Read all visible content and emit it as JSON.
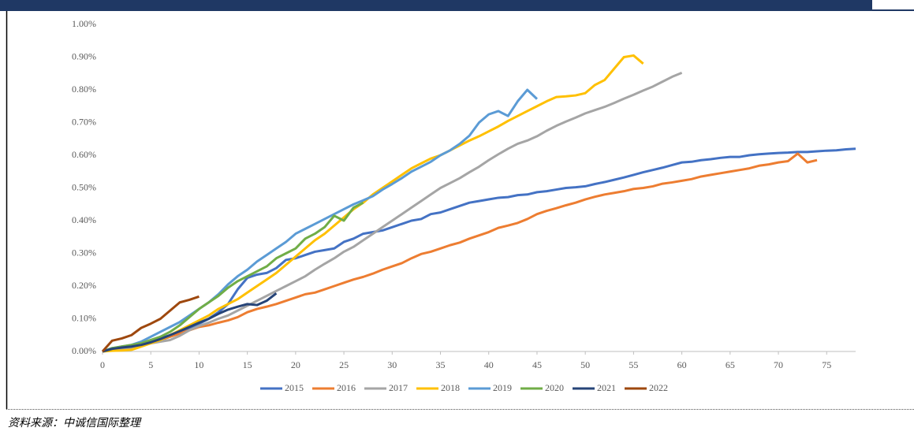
{
  "chart_data": {
    "type": "line",
    "x": [
      0,
      1,
      2,
      3,
      4,
      5,
      6,
      7,
      8,
      9,
      10,
      11,
      12,
      13,
      14,
      15,
      16,
      17,
      18,
      19,
      20,
      21,
      22,
      23,
      24,
      25,
      26,
      27,
      28,
      29,
      30,
      31,
      32,
      33,
      34,
      35,
      36,
      37,
      38,
      39,
      40,
      41,
      42,
      43,
      44,
      45,
      46,
      47,
      48,
      49,
      50,
      51,
      52,
      53,
      54,
      55,
      56,
      57,
      58,
      59,
      60,
      61,
      62,
      63,
      64,
      65,
      66,
      67,
      68,
      69,
      70,
      71,
      72,
      73,
      74,
      75,
      76,
      77,
      78
    ],
    "xlim": [
      0,
      78
    ],
    "xticks": [
      0,
      5,
      10,
      15,
      20,
      25,
      30,
      35,
      40,
      45,
      50,
      55,
      60,
      65,
      70,
      75
    ],
    "ylim": [
      0,
      1
    ],
    "yticks": [
      {
        "value": 0,
        "label": "0.00%"
      },
      {
        "value": 0.1,
        "label": "0.10%"
      },
      {
        "value": 0.2,
        "label": "0.20%"
      },
      {
        "value": 0.3,
        "label": "0.30%"
      },
      {
        "value": 0.4,
        "label": "0.40%"
      },
      {
        "value": 0.5,
        "label": "0.50%"
      },
      {
        "value": 0.6,
        "label": "0.60%"
      },
      {
        "value": 0.7,
        "label": "0.70%"
      },
      {
        "value": 0.8,
        "label": "0.80%"
      },
      {
        "value": 0.9,
        "label": "0.90%"
      },
      {
        "value": 1,
        "label": "1.00%"
      }
    ],
    "grid": false,
    "legend": "bottom",
    "series": [
      {
        "name": "2015",
        "color": "#4472c4",
        "values": [
          0,
          0.01,
          0.013,
          0.015,
          0.02,
          0.03,
          0.04,
          0.05,
          0.06,
          0.07,
          0.085,
          0.1,
          0.12,
          0.145,
          0.19,
          0.225,
          0.235,
          0.24,
          0.255,
          0.28,
          0.285,
          0.295,
          0.305,
          0.31,
          0.315,
          0.335,
          0.345,
          0.36,
          0.365,
          0.37,
          0.38,
          0.39,
          0.4,
          0.405,
          0.42,
          0.425,
          0.435,
          0.445,
          0.455,
          0.46,
          0.465,
          0.47,
          0.472,
          0.478,
          0.48,
          0.487,
          0.49,
          0.495,
          0.5,
          0.502,
          0.505,
          0.512,
          0.518,
          0.525,
          0.532,
          0.54,
          0.548,
          0.555,
          0.562,
          0.57,
          0.578,
          0.58,
          0.585,
          0.588,
          0.592,
          0.595,
          0.595,
          0.6,
          0.603,
          0.605,
          0.607,
          0.608,
          0.61,
          0.61,
          0.612,
          0.614,
          0.615,
          0.618,
          0.62
        ]
      },
      {
        "name": "2016",
        "color": "#ed7d31",
        "values": [
          0,
          0.005,
          0.01,
          0.015,
          0.02,
          0.025,
          0.035,
          0.045,
          0.055,
          0.065,
          0.075,
          0.08,
          0.088,
          0.095,
          0.105,
          0.12,
          0.13,
          0.137,
          0.145,
          0.155,
          0.165,
          0.175,
          0.18,
          0.19,
          0.2,
          0.21,
          0.22,
          0.228,
          0.238,
          0.25,
          0.26,
          0.27,
          0.285,
          0.298,
          0.305,
          0.315,
          0.325,
          0.333,
          0.345,
          0.355,
          0.365,
          0.378,
          0.385,
          0.393,
          0.405,
          0.42,
          0.43,
          0.438,
          0.447,
          0.455,
          0.465,
          0.473,
          0.48,
          0.485,
          0.49,
          0.497,
          0.5,
          0.505,
          0.513,
          0.517,
          0.522,
          0.527,
          0.535,
          0.54,
          0.545,
          0.55,
          0.555,
          0.56,
          0.568,
          0.572,
          0.578,
          0.582,
          0.605,
          0.578,
          0.585,
          null,
          null,
          null,
          null
        ]
      },
      {
        "name": "2017",
        "color": "#a5a5a5",
        "values": [
          0,
          0.005,
          0.008,
          0.012,
          0.018,
          0.025,
          0.03,
          0.035,
          0.048,
          0.065,
          0.078,
          0.088,
          0.1,
          0.11,
          0.125,
          0.14,
          0.155,
          0.17,
          0.185,
          0.2,
          0.215,
          0.23,
          0.25,
          0.268,
          0.285,
          0.305,
          0.32,
          0.34,
          0.36,
          0.38,
          0.4,
          0.42,
          0.44,
          0.46,
          0.48,
          0.5,
          0.515,
          0.53,
          0.548,
          0.565,
          0.585,
          0.603,
          0.62,
          0.635,
          0.645,
          0.658,
          0.675,
          0.69,
          0.703,
          0.715,
          0.728,
          0.738,
          0.748,
          0.76,
          0.773,
          0.785,
          0.798,
          0.81,
          0.825,
          0.84,
          0.852,
          null,
          null,
          null,
          null,
          null,
          null,
          null,
          null,
          null,
          null,
          null,
          null,
          null,
          null,
          null,
          null,
          null,
          null
        ]
      },
      {
        "name": "2018",
        "color": "#ffc000",
        "values": [
          0,
          0.002,
          0.003,
          0.005,
          0.015,
          0.025,
          0.035,
          0.05,
          0.065,
          0.08,
          0.095,
          0.11,
          0.13,
          0.145,
          0.16,
          0.18,
          0.2,
          0.22,
          0.24,
          0.265,
          0.29,
          0.315,
          0.34,
          0.36,
          0.385,
          0.41,
          0.435,
          0.455,
          0.48,
          0.5,
          0.52,
          0.54,
          0.56,
          0.575,
          0.59,
          0.6,
          0.615,
          0.63,
          0.645,
          0.658,
          0.673,
          0.688,
          0.705,
          0.72,
          0.735,
          0.75,
          0.765,
          0.778,
          0.78,
          0.783,
          0.79,
          0.815,
          0.83,
          0.865,
          0.9,
          0.905,
          0.88,
          null,
          null,
          null,
          null,
          null,
          null,
          null,
          null,
          null,
          null,
          null,
          null,
          null,
          null,
          null,
          null,
          null,
          null,
          null,
          null,
          null,
          null
        ]
      },
      {
        "name": "2019",
        "color": "#5b9bd5",
        "values": [
          0,
          0.01,
          0.015,
          0.02,
          0.03,
          0.045,
          0.06,
          0.075,
          0.09,
          0.11,
          0.13,
          0.15,
          0.175,
          0.205,
          0.23,
          0.25,
          0.275,
          0.295,
          0.315,
          0.335,
          0.36,
          0.375,
          0.39,
          0.405,
          0.42,
          0.435,
          0.45,
          0.462,
          0.475,
          0.495,
          0.512,
          0.53,
          0.55,
          0.565,
          0.58,
          0.6,
          0.615,
          0.635,
          0.66,
          0.7,
          0.725,
          0.735,
          0.72,
          0.765,
          0.8,
          0.772,
          null,
          null,
          null,
          null,
          null,
          null,
          null,
          null,
          null,
          null,
          null,
          null,
          null,
          null,
          null,
          null,
          null,
          null,
          null,
          null,
          null,
          null,
          null,
          null,
          null,
          null,
          null,
          null,
          null,
          null,
          null,
          null,
          null
        ]
      },
      {
        "name": "2020",
        "color": "#70ad47",
        "values": [
          0,
          0.01,
          0.015,
          0.02,
          0.025,
          0.035,
          0.045,
          0.06,
          0.08,
          0.105,
          0.13,
          0.15,
          0.17,
          0.195,
          0.215,
          0.23,
          0.245,
          0.26,
          0.285,
          0.3,
          0.315,
          0.345,
          0.36,
          0.38,
          0.415,
          0.4,
          0.44,
          0.455,
          null,
          null,
          null,
          null,
          null,
          null,
          null,
          null,
          null,
          null,
          null,
          null,
          null,
          null,
          null,
          null,
          null,
          null,
          null,
          null,
          null,
          null,
          null,
          null,
          null,
          null,
          null,
          null,
          null,
          null,
          null,
          null,
          null,
          null,
          null,
          null,
          null,
          null,
          null,
          null,
          null,
          null,
          null,
          null,
          null,
          null,
          null,
          null,
          null,
          null,
          null
        ]
      },
      {
        "name": "2021",
        "color": "#264478",
        "values": [
          0,
          0.008,
          0.012,
          0.015,
          0.02,
          0.028,
          0.038,
          0.05,
          0.062,
          0.075,
          0.088,
          0.1,
          0.115,
          0.128,
          0.137,
          0.145,
          0.142,
          0.155,
          0.178,
          null,
          null,
          null,
          null,
          null,
          null,
          null,
          null,
          null,
          null,
          null,
          null,
          null,
          null,
          null,
          null,
          null,
          null,
          null,
          null,
          null,
          null,
          null,
          null,
          null,
          null,
          null,
          null,
          null,
          null,
          null,
          null,
          null,
          null,
          null,
          null,
          null,
          null,
          null,
          null,
          null,
          null,
          null,
          null,
          null,
          null,
          null,
          null,
          null,
          null,
          null,
          null,
          null,
          null,
          null,
          null,
          null,
          null,
          null,
          null
        ]
      },
      {
        "name": "2022",
        "color": "#9e480e",
        "values": [
          0,
          0.033,
          0.04,
          0.05,
          0.072,
          0.085,
          0.1,
          0.125,
          0.15,
          0.158,
          0.168,
          null,
          null,
          null,
          null,
          null,
          null,
          null,
          null,
          null,
          null,
          null,
          null,
          null,
          null,
          null,
          null,
          null,
          null,
          null,
          null,
          null,
          null,
          null,
          null,
          null,
          null,
          null,
          null,
          null,
          null,
          null,
          null,
          null,
          null,
          null,
          null,
          null,
          null,
          null,
          null,
          null,
          null,
          null,
          null,
          null,
          null,
          null,
          null,
          null,
          null,
          null,
          null,
          null,
          null,
          null,
          null,
          null,
          null,
          null,
          null,
          null,
          null,
          null,
          null,
          null,
          null,
          null,
          null
        ]
      }
    ]
  },
  "source": "资料来源：中诚信国际整理"
}
